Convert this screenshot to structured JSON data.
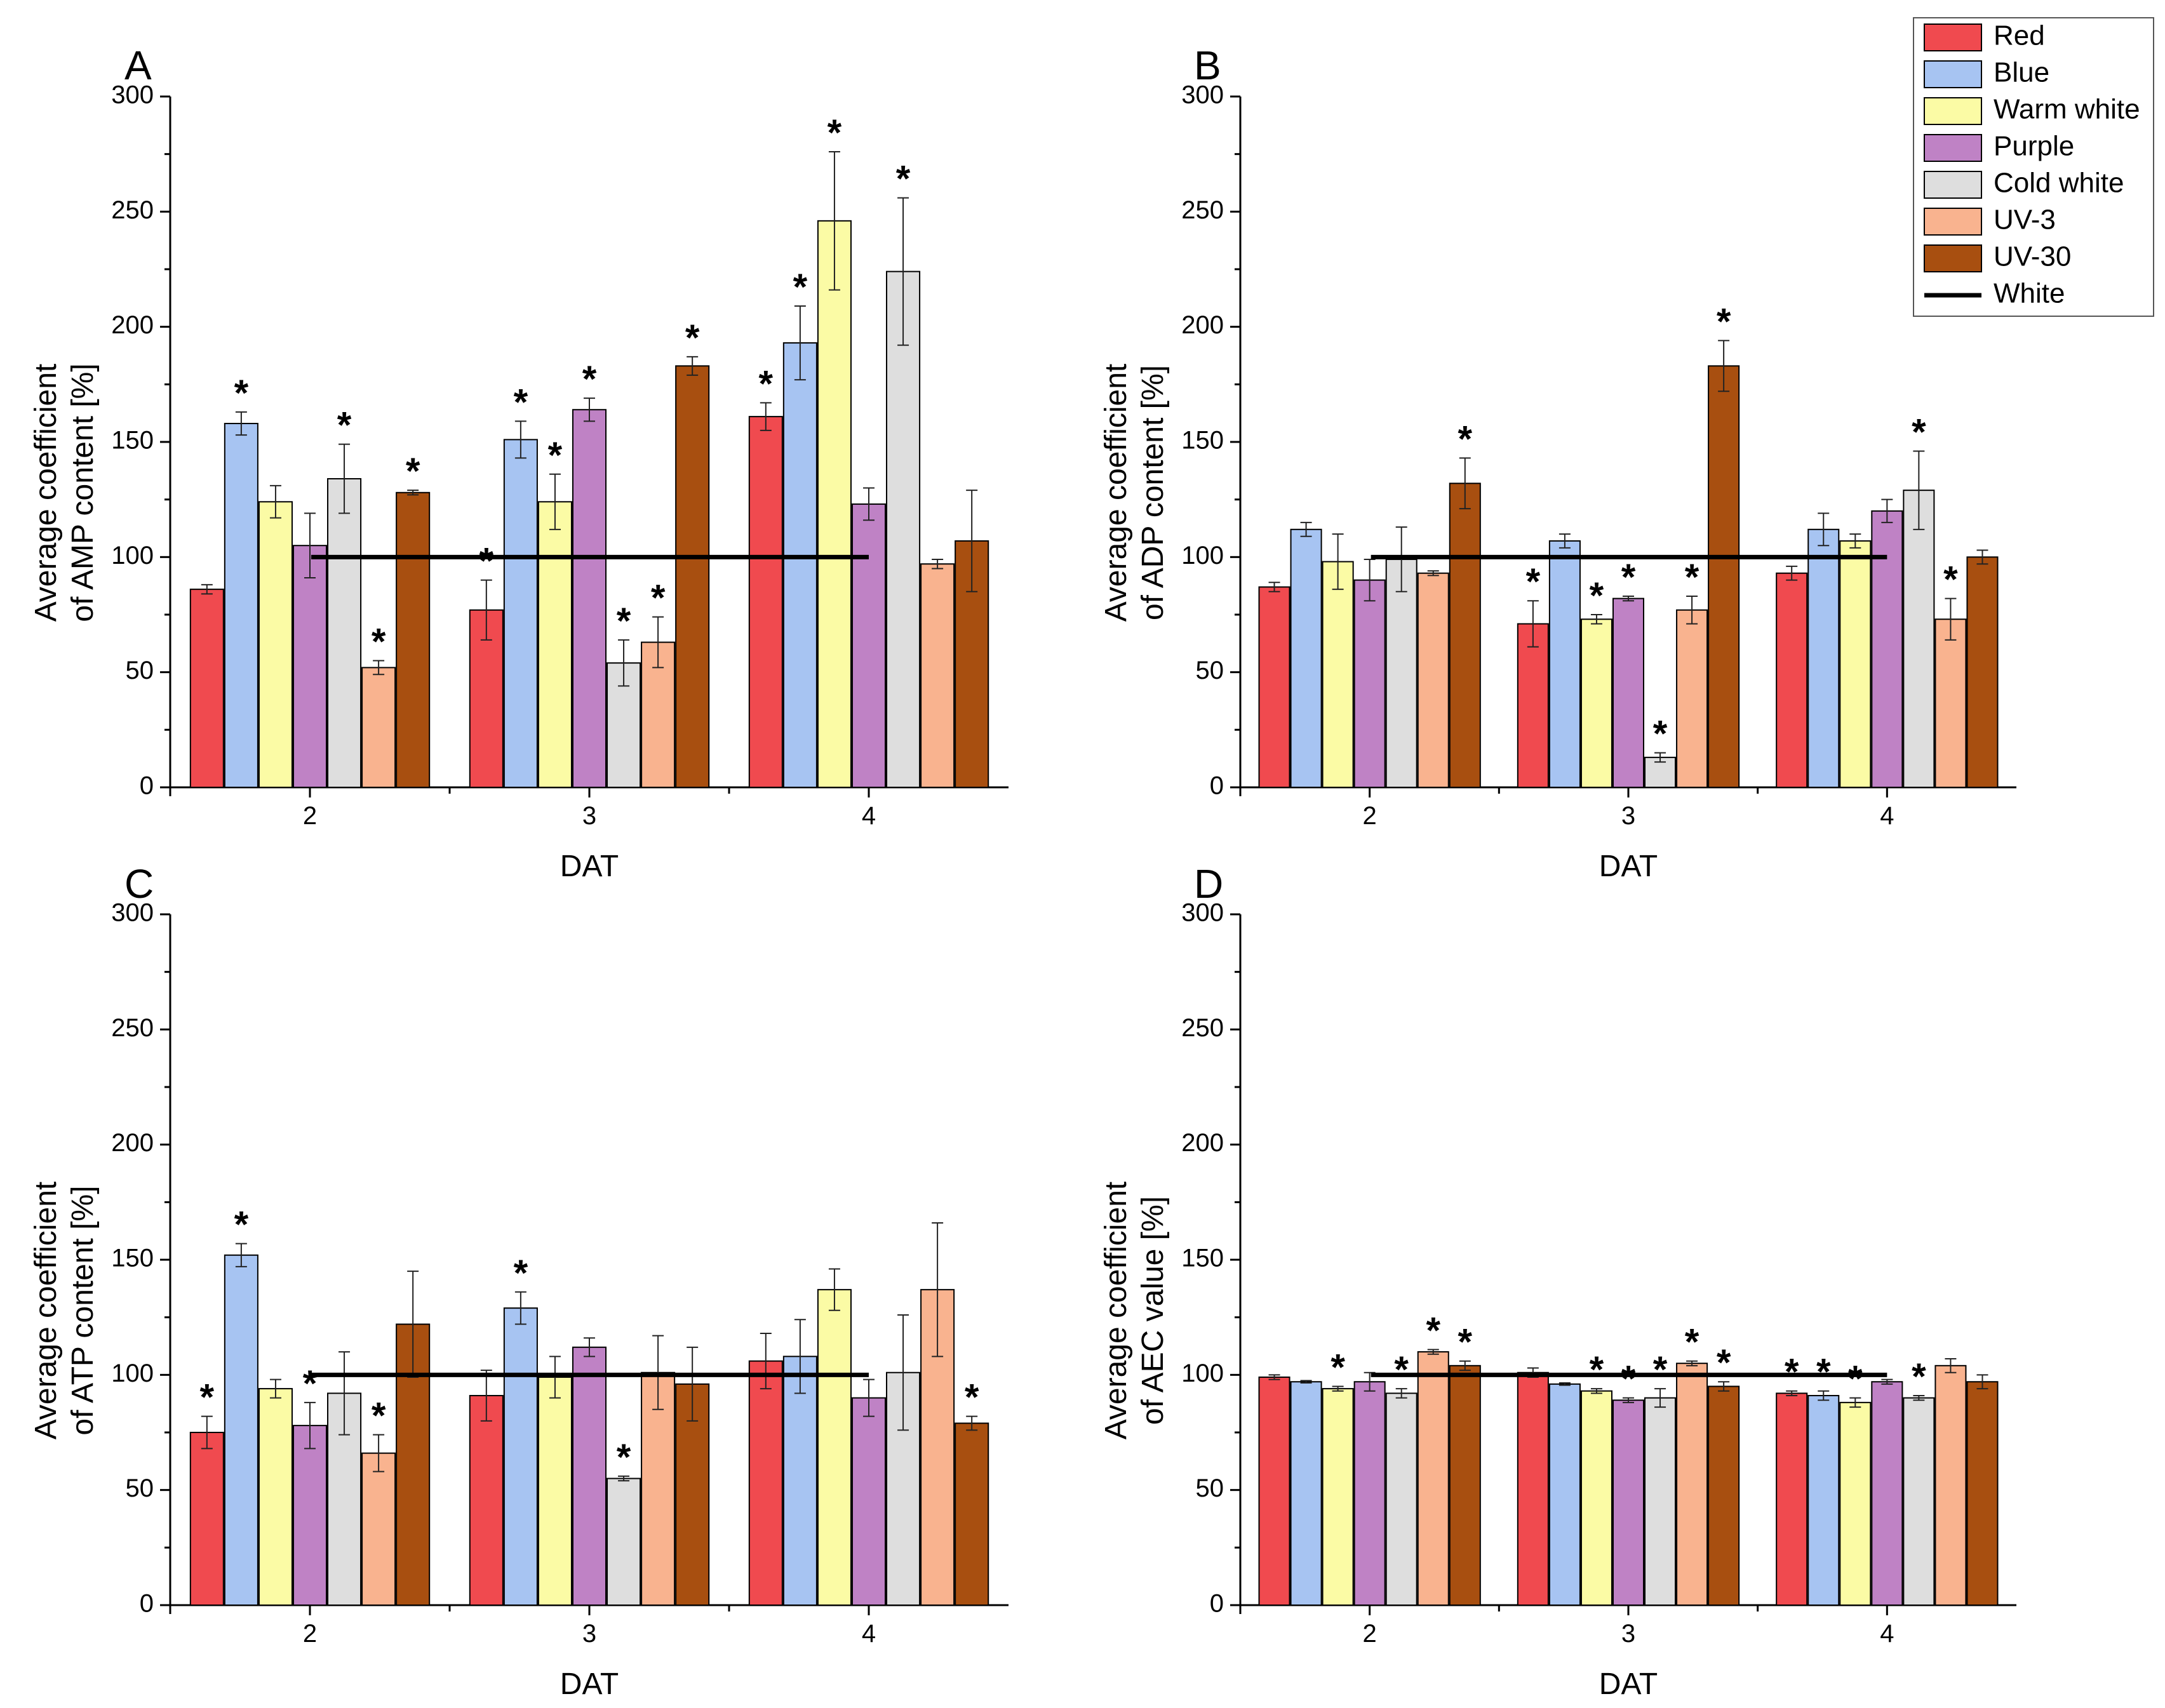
{
  "figure": {
    "colors": {
      "Red": "#f04a4f",
      "Blue": "#a7c4f2",
      "Warm white": "#fbfba5",
      "Purple": "#bf82c5",
      "Cold white": "#dedede",
      "UV-3": "#f9b38f",
      "UV-30": "#a84f10",
      "White": "#000000"
    }
  },
  "legend": {
    "items": [
      {
        "label": "Red",
        "kind": "box"
      },
      {
        "label": "Blue",
        "kind": "box"
      },
      {
        "label": "Warm white",
        "kind": "box"
      },
      {
        "label": "Purple",
        "kind": "box"
      },
      {
        "label": "Cold white",
        "kind": "box"
      },
      {
        "label": "UV-3",
        "kind": "box"
      },
      {
        "label": "UV-30",
        "kind": "box"
      },
      {
        "label": "White",
        "kind": "line"
      }
    ]
  },
  "chart_data": [
    {
      "panel": "A",
      "type": "bar",
      "xlabel": "DAT",
      "ylabel": [
        "Average coefficient",
        "of AMP content [%]"
      ],
      "ylim": [
        0,
        300
      ],
      "yticks": [
        0,
        50,
        100,
        150,
        200,
        250,
        300
      ],
      "categories": [
        "2",
        "3",
        "4"
      ],
      "reference_line": {
        "name": "White",
        "value": 100
      },
      "series": [
        {
          "name": "Red",
          "values": [
            86,
            77,
            161
          ],
          "errors": [
            2,
            13,
            6
          ],
          "sig": [
            false,
            true,
            true
          ]
        },
        {
          "name": "Blue",
          "values": [
            158,
            151,
            193
          ],
          "errors": [
            5,
            8,
            16
          ],
          "sig": [
            true,
            true,
            true
          ]
        },
        {
          "name": "Warm white",
          "values": [
            124,
            124,
            246
          ],
          "errors": [
            7,
            12,
            30
          ],
          "sig": [
            false,
            true,
            true
          ]
        },
        {
          "name": "Purple",
          "values": [
            105,
            164,
            123
          ],
          "errors": [
            14,
            5,
            7
          ],
          "sig": [
            false,
            true,
            false
          ]
        },
        {
          "name": "Cold white",
          "values": [
            134,
            54,
            224
          ],
          "errors": [
            15,
            10,
            32
          ],
          "sig": [
            true,
            true,
            true
          ]
        },
        {
          "name": "UV-3",
          "values": [
            52,
            63,
            97
          ],
          "errors": [
            3,
            11,
            2
          ],
          "sig": [
            true,
            true,
            false
          ]
        },
        {
          "name": "UV-30",
          "values": [
            128,
            183,
            107
          ],
          "errors": [
            1,
            4,
            22
          ],
          "sig": [
            true,
            true,
            false
          ]
        }
      ]
    },
    {
      "panel": "B",
      "type": "bar",
      "xlabel": "DAT",
      "ylabel": [
        "Average coefficient",
        "of ADP content [%]"
      ],
      "ylim": [
        0,
        300
      ],
      "yticks": [
        0,
        50,
        100,
        150,
        200,
        250,
        300
      ],
      "categories": [
        "2",
        "3",
        "4"
      ],
      "reference_line": {
        "name": "White",
        "value": 100
      },
      "series": [
        {
          "name": "Red",
          "values": [
            87,
            71,
            93
          ],
          "errors": [
            2,
            10,
            3
          ],
          "sig": [
            false,
            true,
            false
          ]
        },
        {
          "name": "Blue",
          "values": [
            112,
            107,
            112
          ],
          "errors": [
            3,
            3,
            7
          ],
          "sig": [
            false,
            false,
            false
          ]
        },
        {
          "name": "Warm white",
          "values": [
            98,
            73,
            107
          ],
          "errors": [
            12,
            2,
            3
          ],
          "sig": [
            false,
            true,
            false
          ]
        },
        {
          "name": "Purple",
          "values": [
            90,
            82,
            120
          ],
          "errors": [
            9,
            1,
            5
          ],
          "sig": [
            false,
            true,
            false
          ]
        },
        {
          "name": "Cold white",
          "values": [
            99,
            13,
            129
          ],
          "errors": [
            14,
            2,
            17
          ],
          "sig": [
            false,
            true,
            true
          ]
        },
        {
          "name": "UV-3",
          "values": [
            93,
            77,
            73
          ],
          "errors": [
            1,
            6,
            9
          ],
          "sig": [
            false,
            true,
            true
          ]
        },
        {
          "name": "UV-30",
          "values": [
            132,
            183,
            100
          ],
          "errors": [
            11,
            11,
            3
          ],
          "sig": [
            true,
            true,
            false
          ]
        }
      ]
    },
    {
      "panel": "C",
      "type": "bar",
      "xlabel": "DAT",
      "ylabel": [
        "Average coefficient",
        "of ATP content [%]"
      ],
      "ylim": [
        0,
        300
      ],
      "yticks": [
        0,
        50,
        100,
        150,
        200,
        250,
        300
      ],
      "categories": [
        "2",
        "3",
        "4"
      ],
      "reference_line": {
        "name": "White",
        "value": 100
      },
      "series": [
        {
          "name": "Red",
          "values": [
            75,
            91,
            106
          ],
          "errors": [
            7,
            11,
            12
          ],
          "sig": [
            true,
            false,
            false
          ]
        },
        {
          "name": "Blue",
          "values": [
            152,
            129,
            108
          ],
          "errors": [
            5,
            7,
            16
          ],
          "sig": [
            true,
            true,
            false
          ]
        },
        {
          "name": "Warm white",
          "values": [
            94,
            99,
            137
          ],
          "errors": [
            4,
            9,
            9
          ],
          "sig": [
            false,
            false,
            false
          ]
        },
        {
          "name": "Purple",
          "values": [
            78,
            112,
            90
          ],
          "errors": [
            10,
            4,
            8
          ],
          "sig": [
            true,
            false,
            false
          ]
        },
        {
          "name": "Cold white",
          "values": [
            92,
            55,
            101
          ],
          "errors": [
            18,
            1,
            25
          ],
          "sig": [
            false,
            true,
            false
          ]
        },
        {
          "name": "UV-3",
          "values": [
            66,
            101,
            137
          ],
          "errors": [
            8,
            16,
            29
          ],
          "sig": [
            true,
            false,
            false
          ]
        },
        {
          "name": "UV-30",
          "values": [
            122,
            96,
            79
          ],
          "errors": [
            23,
            16,
            3
          ],
          "sig": [
            false,
            false,
            true
          ]
        }
      ]
    },
    {
      "panel": "D",
      "type": "bar",
      "xlabel": "DAT",
      "ylabel": [
        "Average coefficient",
        "of AEC value [%]"
      ],
      "ylim": [
        0,
        300
      ],
      "yticks": [
        0,
        50,
        100,
        150,
        200,
        250,
        300
      ],
      "categories": [
        "2",
        "3",
        "4"
      ],
      "reference_line": {
        "name": "White",
        "value": 100
      },
      "series": [
        {
          "name": "Red",
          "values": [
            99,
            101,
            92
          ],
          "errors": [
            1,
            2,
            1
          ],
          "sig": [
            false,
            false,
            true
          ]
        },
        {
          "name": "Blue",
          "values": [
            97,
            96,
            91
          ],
          "errors": [
            0.5,
            0.5,
            2
          ],
          "sig": [
            false,
            false,
            true
          ]
        },
        {
          "name": "Warm white",
          "values": [
            94,
            93,
            88
          ],
          "errors": [
            1,
            1,
            2
          ],
          "sig": [
            true,
            true,
            true
          ]
        },
        {
          "name": "Purple",
          "values": [
            97,
            89,
            97
          ],
          "errors": [
            4,
            1,
            1
          ],
          "sig": [
            false,
            true,
            false
          ]
        },
        {
          "name": "Cold white",
          "values": [
            92,
            90,
            90
          ],
          "errors": [
            2,
            4,
            1
          ],
          "sig": [
            true,
            true,
            true
          ]
        },
        {
          "name": "UV-3",
          "values": [
            110,
            105,
            104
          ],
          "errors": [
            1,
            1,
            3
          ],
          "sig": [
            true,
            true,
            false
          ]
        },
        {
          "name": "UV-30",
          "values": [
            104,
            95,
            97
          ],
          "errors": [
            2,
            2,
            3
          ],
          "sig": [
            true,
            true,
            false
          ]
        }
      ]
    }
  ]
}
